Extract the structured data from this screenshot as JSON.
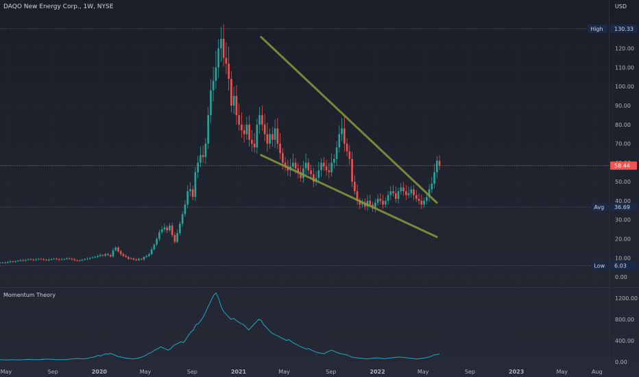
{
  "header": {
    "title": "DAQO New Energy Corp., 1W, NYSE",
    "currency": "USD"
  },
  "indicator": {
    "name": "Momentum Theory"
  },
  "colors": {
    "background": "#1e222d",
    "up": "#26a69a",
    "down": "#ef5350",
    "trendline": "#8a9a3c",
    "momentum": "#22a7c7",
    "price_line": "#ef5350",
    "high_low_label": "#1c2a4a",
    "label_text": "#d1d4dc"
  },
  "chart_data": [
    {
      "type": "candlestick",
      "title": "DAQO New Energy Corp., 1W, NYSE",
      "ylim": [
        -5,
        140
      ],
      "y_ticks": [
        "0.00",
        "10.00",
        "20.00",
        "30.00",
        "40.00",
        "50.00",
        "60.00",
        "70.00",
        "80.00",
        "90.00",
        "100.00",
        "110.00",
        "120.00"
      ],
      "x_ticks": [
        "May",
        "Sep",
        "2020",
        "May",
        "Sep",
        "2021",
        "May",
        "Sep",
        "2022",
        "May",
        "Sep",
        "2023",
        "May",
        "Aug"
      ],
      "markers": {
        "high": {
          "label": "High",
          "value": 130.33,
          "text": "130.33"
        },
        "avg": {
          "label": "Avg",
          "value": 36.69,
          "text": "36.69"
        },
        "low": {
          "label": "Low",
          "value": 6.03,
          "text": "6.03"
        },
        "last": {
          "value": 58.44,
          "text": "58.44"
        }
      },
      "x_range": [
        "2019-04-15",
        "2023-09-01"
      ],
      "candles_x_range": [
        "2019-04-15",
        "2022-06-13"
      ],
      "closes": [
        7.5,
        7.6,
        7.4,
        7.8,
        8.2,
        7.9,
        8.3,
        8.5,
        8.8,
        8.6,
        9.0,
        9.3,
        9.1,
        8.9,
        9.2,
        9.5,
        9.4,
        9.0,
        8.7,
        9.1,
        9.4,
        9.6,
        9.3,
        9.0,
        9.2,
        9.4,
        9.8,
        9.5,
        9.2,
        8.8,
        8.5,
        8.7,
        9.0,
        9.3,
        9.6,
        10.0,
        10.3,
        10.5,
        11.0,
        11.5,
        11.2,
        12.0,
        11.5,
        10.8,
        14.0,
        15.5,
        13.5,
        12.0,
        11.0,
        10.5,
        9.5,
        9.8,
        9.2,
        8.8,
        9.5,
        9.2,
        10.5,
        11.0,
        12.0,
        14.5,
        17.0,
        20.0,
        23.5,
        25.0,
        26.0,
        24.5,
        27.0,
        22.0,
        18.5,
        23.0,
        28.0,
        33.0,
        38.0,
        45.0,
        46.0,
        42.0,
        55.0,
        60.0,
        64.0,
        63.0,
        70.0,
        85.0,
        98.0,
        103.0,
        110.0,
        120.0,
        125.0,
        115.0,
        112.0,
        104.0,
        90.0,
        95.0,
        85.0,
        80.0,
        77.0,
        75.0,
        80.0,
        72.0,
        70.0,
        68.0,
        80.0,
        85.0,
        80.0,
        75.0,
        70.0,
        75.0,
        72.0,
        78.0,
        70.0,
        65.0,
        60.0,
        58.0,
        56.0,
        58.0,
        60.0,
        57.0,
        55.0,
        52.0,
        57.0,
        60.0,
        56.0,
        54.0,
        50.0,
        52.0,
        56.0,
        60.0,
        58.0,
        56.0,
        55.0,
        60.0,
        62.0,
        68.0,
        75.0,
        78.0,
        70.0,
        66.0,
        62.0,
        50.0,
        45.0,
        40.0,
        38.0,
        39.0,
        37.0,
        40.0,
        38.0,
        36.0,
        39.0,
        41.0,
        40.0,
        38.0,
        40.0,
        43.0,
        45.0,
        44.0,
        41.0,
        45.0,
        47.0,
        45.0,
        43.0,
        44.0,
        46.0,
        43.0,
        41.0,
        40.0,
        38.0,
        40.0,
        42.0,
        46.0,
        49.0,
        55.0,
        61.0,
        58.44
      ],
      "trendlines": [
        {
          "from": [
            "2021-03-01",
            126.0
          ],
          "to": [
            "2022-06-06",
            39.0
          ]
        },
        {
          "from": [
            "2021-03-01",
            64.0
          ],
          "to": [
            "2022-06-06",
            21.0
          ]
        }
      ]
    },
    {
      "type": "line",
      "title": "Momentum Theory",
      "ylim": [
        -80,
        1380
      ],
      "y_ticks": [
        "0.00",
        "400.00",
        "800.00",
        "1200.00"
      ],
      "values": [
        40,
        38,
        36,
        35,
        37,
        40,
        38,
        36,
        35,
        38,
        42,
        45,
        43,
        40,
        38,
        40,
        42,
        45,
        48,
        50,
        48,
        45,
        42,
        40,
        38,
        40,
        42,
        45,
        50,
        55,
        60,
        62,
        58,
        55,
        60,
        65,
        80,
        85,
        100,
        120,
        110,
        130,
        150,
        145,
        160,
        140,
        120,
        100,
        90,
        80,
        70,
        65,
        60,
        55,
        60,
        70,
        80,
        100,
        120,
        150,
        170,
        200,
        230,
        250,
        280,
        260,
        240,
        220,
        250,
        300,
        330,
        350,
        380,
        360,
        420,
        500,
        560,
        600,
        700,
        720,
        780,
        850,
        950,
        1050,
        1150,
        1250,
        1300,
        1200,
        1050,
        950,
        900,
        850,
        800,
        820,
        780,
        750,
        720,
        700,
        650,
        600,
        650,
        700,
        750,
        800,
        780,
        700,
        650,
        600,
        550,
        520,
        500,
        480,
        450,
        430,
        400,
        420,
        380,
        350,
        330,
        300,
        280,
        260,
        240,
        250,
        220,
        200,
        180,
        170,
        160,
        150,
        180,
        200,
        220,
        200,
        180,
        160,
        150,
        140,
        130,
        110,
        90,
        80,
        75,
        70,
        65,
        60,
        55,
        60,
        65,
        70,
        75,
        70,
        65,
        60,
        65,
        70,
        75,
        80,
        85,
        90,
        85,
        80,
        75,
        70,
        65,
        60,
        55,
        60,
        65,
        70,
        80,
        95,
        110,
        130,
        140,
        145
      ]
    }
  ]
}
